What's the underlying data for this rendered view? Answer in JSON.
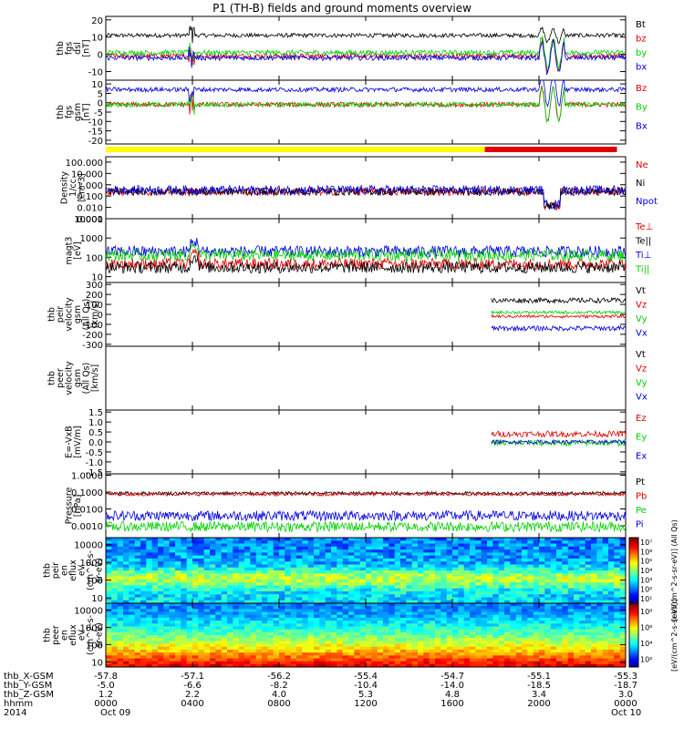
{
  "chart_data": {
    "type": "line",
    "title": "P1 (TH-B) fields and ground moments overview",
    "time_axis": {
      "hours": [
        0,
        4,
        8,
        12,
        16,
        20,
        24
      ],
      "rows": [
        {
          "name": "thb_X-GSM",
          "values": [
            "-57.8",
            "-57.1",
            "-56.2",
            "-55.4",
            "-54.7",
            "-55.1",
            "-55.3"
          ]
        },
        {
          "name": "thb_Y-GSM",
          "values": [
            "-5.0",
            "-6.6",
            "-8.2",
            "-10.4",
            "-14.0",
            "-18.5",
            "-18.7"
          ]
        },
        {
          "name": "thb_Z-GSM",
          "values": [
            "1.2",
            "2.2",
            "4.0",
            "5.3",
            "4.8",
            "3.4",
            "3.0"
          ]
        },
        {
          "name": "hhmm",
          "values": [
            "0000",
            "0400",
            "0800",
            "1200",
            "1600",
            "2000",
            "0000"
          ]
        },
        {
          "name": "2014",
          "values": [
            "Oct 09",
            "",
            "",
            "",
            "",
            "",
            "Oct 10"
          ]
        }
      ]
    },
    "colors": {
      "black": "#000000",
      "red": "#e00000",
      "green": "#00d000",
      "blue": "#0000e0",
      "yellow": "#ffff00"
    },
    "mode_bar": {
      "yellow_until_hour": 17.5,
      "red_from_hour": 17.5,
      "red_to_hour": 23.6
    },
    "panels": [
      {
        "id": "fgs-dsl",
        "ylabel": [
          "thb",
          "fgs",
          "dsl",
          "[nT]"
        ],
        "ylim": [
          -15,
          22
        ],
        "yticks": [
          20,
          10,
          0,
          -10
        ],
        "ytick_labels": [
          "20",
          "10",
          "0",
          "-10"
        ],
        "series": [
          {
            "name": "Bt",
            "color": "black",
            "base": 11,
            "noise": 1.2
          },
          {
            "name": "bz",
            "color": "red",
            "base": -1,
            "noise": 1.5
          },
          {
            "name": "by",
            "color": "green",
            "base": 1,
            "noise": 1.5
          },
          {
            "name": "bx",
            "color": "blue",
            "base": -2,
            "noise": 1.5
          }
        ]
      },
      {
        "id": "fgs-gsm",
        "ylabel": [
          "thb",
          "fgs",
          "gsm",
          "[nT]"
        ],
        "ylim": [
          -22,
          12
        ],
        "yticks": [
          10,
          5,
          0,
          -5,
          -10,
          -15,
          -20
        ],
        "ytick_labels": [
          "10",
          "5",
          "0",
          "-5",
          "-10",
          "-15",
          "-20"
        ],
        "series": [
          {
            "name": "Bz",
            "color": "red",
            "base": -1,
            "noise": 1.3
          },
          {
            "name": "By",
            "color": "green",
            "base": -1,
            "noise": 1.3
          },
          {
            "name": "Bx",
            "color": "blue",
            "base": 7,
            "noise": 1.2
          }
        ]
      },
      {
        "id": "density",
        "ylabel": [
          "Density",
          "1/cc",
          "[cm-3]"
        ],
        "log": true,
        "ylim": [
          0.001,
          300
        ],
        "yticks": [
          100,
          10,
          1,
          0.1,
          0.01,
          0.001
        ],
        "ytick_labels": [
          "100.000",
          "10.000",
          "1.000",
          "0.100",
          "0.010",
          "0.001"
        ],
        "series": [
          {
            "name": "Ne",
            "color": "red",
            "base": 0.25,
            "noise": 0.35
          },
          {
            "name": "Ni",
            "color": "black",
            "base": 0.25,
            "noise": 0.35
          },
          {
            "name": "Npot",
            "color": "blue",
            "base": 0.35,
            "noise": 0.4
          }
        ]
      },
      {
        "id": "temperature",
        "ylabel": [
          "magt3",
          "[eV]"
        ],
        "log": true,
        "ylim": [
          5,
          10000
        ],
        "yticks": [
          10000,
          1000,
          100,
          10
        ],
        "ytick_labels": [
          "10000",
          "1000",
          "100",
          "10"
        ],
        "series": [
          {
            "name": "Te⊥",
            "color": "red",
            "base": 45,
            "noise": 0.3
          },
          {
            "name": "Te||",
            "color": "black",
            "base": 30,
            "noise": 0.3
          },
          {
            "name": "Ti⊥",
            "color": "blue",
            "base": 200,
            "noise": 0.3
          },
          {
            "name": "Ti||",
            "color": "green",
            "base": 130,
            "noise": 0.3
          }
        ]
      },
      {
        "id": "peir-velocity",
        "ylabel": [
          "thb",
          "peir",
          "velocity",
          "gsm",
          "(All Qs)",
          "[km/s]"
        ],
        "ylim": [
          -320,
          320
        ],
        "yticks": [
          300,
          200,
          100,
          0,
          -100,
          -200,
          -300
        ],
        "ytick_labels": [
          "300",
          "200",
          "100",
          "0",
          "-100",
          "-200",
          "-300"
        ],
        "data_from_hour": 17.8,
        "series": [
          {
            "name": "Vt",
            "color": "black",
            "base": 140,
            "noise": 25
          },
          {
            "name": "Vz",
            "color": "red",
            "base": -20,
            "noise": 15
          },
          {
            "name": "Vy",
            "color": "green",
            "base": 20,
            "noise": 15
          },
          {
            "name": "Vx",
            "color": "blue",
            "base": -140,
            "noise": 25
          }
        ]
      },
      {
        "id": "peer-velocity",
        "ylabel": [
          "thb",
          "peer",
          "velocity",
          "gsm",
          "(All Qs)",
          "[km/s]"
        ],
        "ylim": [
          -1,
          1
        ],
        "yticks": [],
        "ytick_labels": [],
        "empty": true,
        "series": [
          {
            "name": "Vt",
            "color": "black"
          },
          {
            "name": "Vz",
            "color": "red"
          },
          {
            "name": "Vy",
            "color": "green"
          },
          {
            "name": "Vx",
            "color": "blue"
          }
        ]
      },
      {
        "id": "efield",
        "ylabel": [
          "E=-VxB",
          "[mV/m]"
        ],
        "ylim": [
          -1.6,
          1.6
        ],
        "yticks": [
          1.5,
          1.0,
          0.5,
          0.0,
          -0.5,
          -1.0,
          -1.5
        ],
        "ytick_labels": [
          "1.5",
          "1.0",
          "0.5",
          "0.0",
          "-0.5",
          "-1.0",
          "-1.5"
        ],
        "data_from_hour": 17.8,
        "series": [
          {
            "name": "Ez",
            "color": "red",
            "base": 0.4,
            "noise": 0.15
          },
          {
            "name": "Ey",
            "color": "green",
            "base": -0.05,
            "noise": 0.15
          },
          {
            "name": "Ex",
            "color": "blue",
            "base": 0.0,
            "noise": 0.1
          }
        ]
      },
      {
        "id": "pressure",
        "ylabel": [
          "Pressure",
          "[nPa]"
        ],
        "log": true,
        "ylim": [
          0.0002,
          1.2
        ],
        "yticks": [
          1,
          0.1,
          0.01,
          0.001
        ],
        "ytick_labels": [
          "1.0000",
          "0.1000",
          "0.0100",
          "0.0010"
        ],
        "series": [
          {
            "name": "Pt",
            "color": "black",
            "base": 0.085,
            "noise": 0.1
          },
          {
            "name": "Pb",
            "color": "red",
            "base": 0.075,
            "noise": 0.1
          },
          {
            "name": "Pe",
            "color": "green",
            "base": 0.0009,
            "noise": 0.3
          },
          {
            "name": "Pi",
            "color": "blue",
            "base": 0.004,
            "noise": 0.3
          }
        ]
      }
    ],
    "spectrograms": [
      {
        "id": "peir-spec",
        "ylabel": [
          "thb",
          "peir",
          "en",
          "eflux",
          "eV",
          "(cm^2-s-",
          "sr-eV)"
        ],
        "log": true,
        "ylim": [
          5,
          25000
        ],
        "yticks": [
          10000,
          1000,
          100,
          10
        ],
        "ytick_labels": [
          "10000",
          "1000",
          "100",
          "10"
        ]
      },
      {
        "id": "peer-spec",
        "ylabel": [
          "thb",
          "peer",
          "en",
          "eflux",
          "eV",
          "(cm^2-s-",
          "sr-eV)"
        ],
        "log": true,
        "ylim": [
          5,
          25000
        ],
        "yticks": [
          10000,
          1000,
          100,
          10
        ],
        "ytick_labels": [
          "10000",
          "1000",
          "100",
          "10"
        ]
      }
    ],
    "colorbars": [
      {
        "id": "peir-colorbar",
        "tick_labels": [
          "10¹",
          "10²",
          "10³",
          "10⁴",
          "10⁵",
          "10⁶",
          "10⁷"
        ],
        "ylabel": "[eV/(cm^2-s-sr-eV)] (All Qs)"
      },
      {
        "id": "peer-colorbar",
        "tick_labels": [
          "10²",
          "10⁴",
          "10⁶",
          "10⁸"
        ],
        "ylabel": "[eV/(cm^2-s-sr-eV)]"
      }
    ]
  }
}
